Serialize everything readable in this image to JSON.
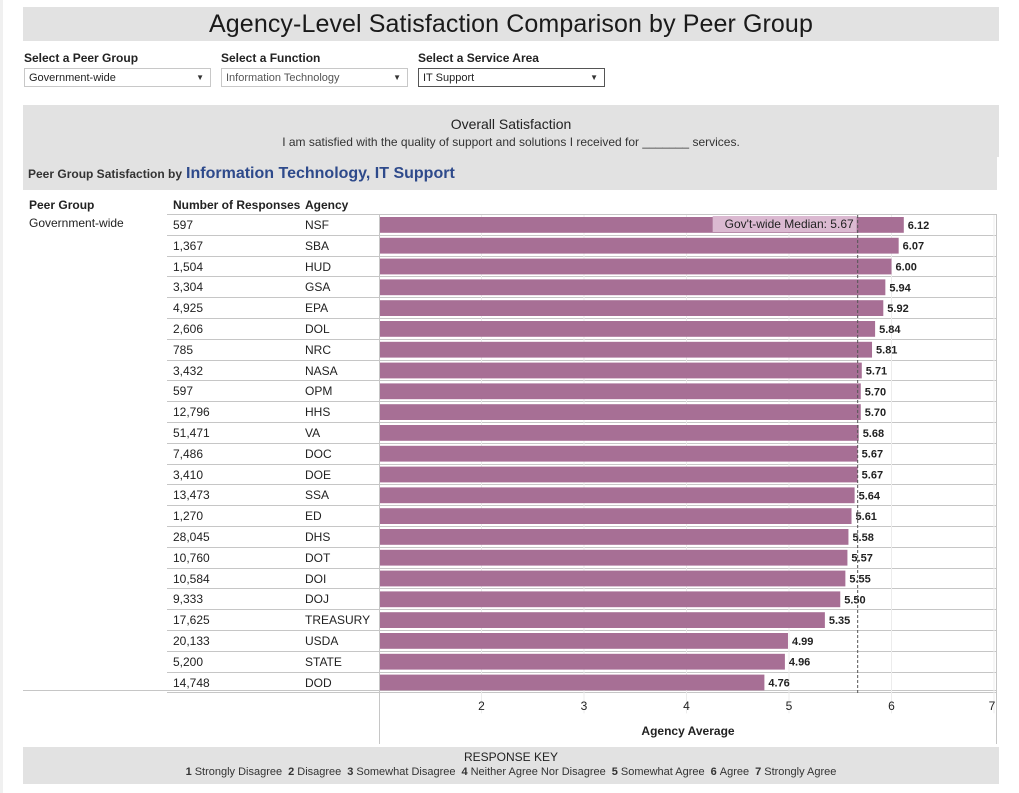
{
  "title": "Agency-Level Satisfaction Comparison by Peer Group",
  "filters": [
    {
      "label": "Select a Peer Group",
      "value": "Government-wide"
    },
    {
      "label": "Select a Function",
      "value": "Information Technology"
    },
    {
      "label": "Select a Service Area",
      "value": "IT Support"
    }
  ],
  "overall": {
    "title": "Overall Satisfaction",
    "question": "I am satisfied with the quality of support and solutions I received for _______ services."
  },
  "peer_header": {
    "prefix": "Peer Group Satisfaction by",
    "selection": "Information Technology, IT Support"
  },
  "table": {
    "columns": [
      "Peer Group",
      "Number of Responses",
      "Agency"
    ],
    "peer_group": "Government-wide"
  },
  "chart_data": {
    "type": "bar",
    "orientation": "horizontal",
    "xlabel": "Agency Average",
    "xlim": [
      1,
      7
    ],
    "xticks": [
      2,
      3,
      4,
      5,
      6,
      7
    ],
    "grid": true,
    "colors": {
      "bar": "#a76f95",
      "median_label_bg": "#dbb9d1"
    },
    "reference_line": {
      "label": "Gov't-wide Median: 5.67",
      "value": 5.67
    },
    "categories": [
      "NSF",
      "SBA",
      "HUD",
      "GSA",
      "EPA",
      "DOL",
      "NRC",
      "NASA",
      "OPM",
      "HHS",
      "VA",
      "DOC",
      "DOE",
      "SSA",
      "ED",
      "DHS",
      "DOT",
      "DOI",
      "DOJ",
      "TREASURY",
      "USDA",
      "STATE",
      "DOD"
    ],
    "responses": [
      "597",
      "1,367",
      "1,504",
      "3,304",
      "4,925",
      "2,606",
      "785",
      "3,432",
      "597",
      "12,796",
      "51,471",
      "7,486",
      "3,410",
      "13,473",
      "1,270",
      "28,045",
      "10,760",
      "10,584",
      "9,333",
      "17,625",
      "20,133",
      "5,200",
      "14,748"
    ],
    "values": [
      6.12,
      6.07,
      6.0,
      5.94,
      5.92,
      5.84,
      5.81,
      5.71,
      5.7,
      5.7,
      5.68,
      5.67,
      5.67,
      5.64,
      5.61,
      5.58,
      5.57,
      5.55,
      5.5,
      5.35,
      4.99,
      4.96,
      4.76
    ],
    "value_labels": [
      "6.12",
      "6.07",
      "6.00",
      "5.94",
      "5.92",
      "5.84",
      "5.81",
      "5.71",
      "5.70",
      "5.70",
      "5.68",
      "5.67",
      "5.67",
      "5.64",
      "5.61",
      "5.58",
      "5.57",
      "5.55",
      "5.50",
      "5.35",
      "4.99",
      "4.96",
      "4.76"
    ]
  },
  "response_key": {
    "title": "RESPONSE KEY",
    "items": [
      {
        "num": "1",
        "label": "Strongly Disagree"
      },
      {
        "num": "2",
        "label": "Disagree"
      },
      {
        "num": "3",
        "label": "Somewhat Disagree"
      },
      {
        "num": "4",
        "label": "Neither Agree Nor Disagree"
      },
      {
        "num": "5",
        "label": "Somewhat Agree"
      },
      {
        "num": "6",
        "label": "Agree"
      },
      {
        "num": "7",
        "label": "Strongly Agree"
      }
    ]
  }
}
